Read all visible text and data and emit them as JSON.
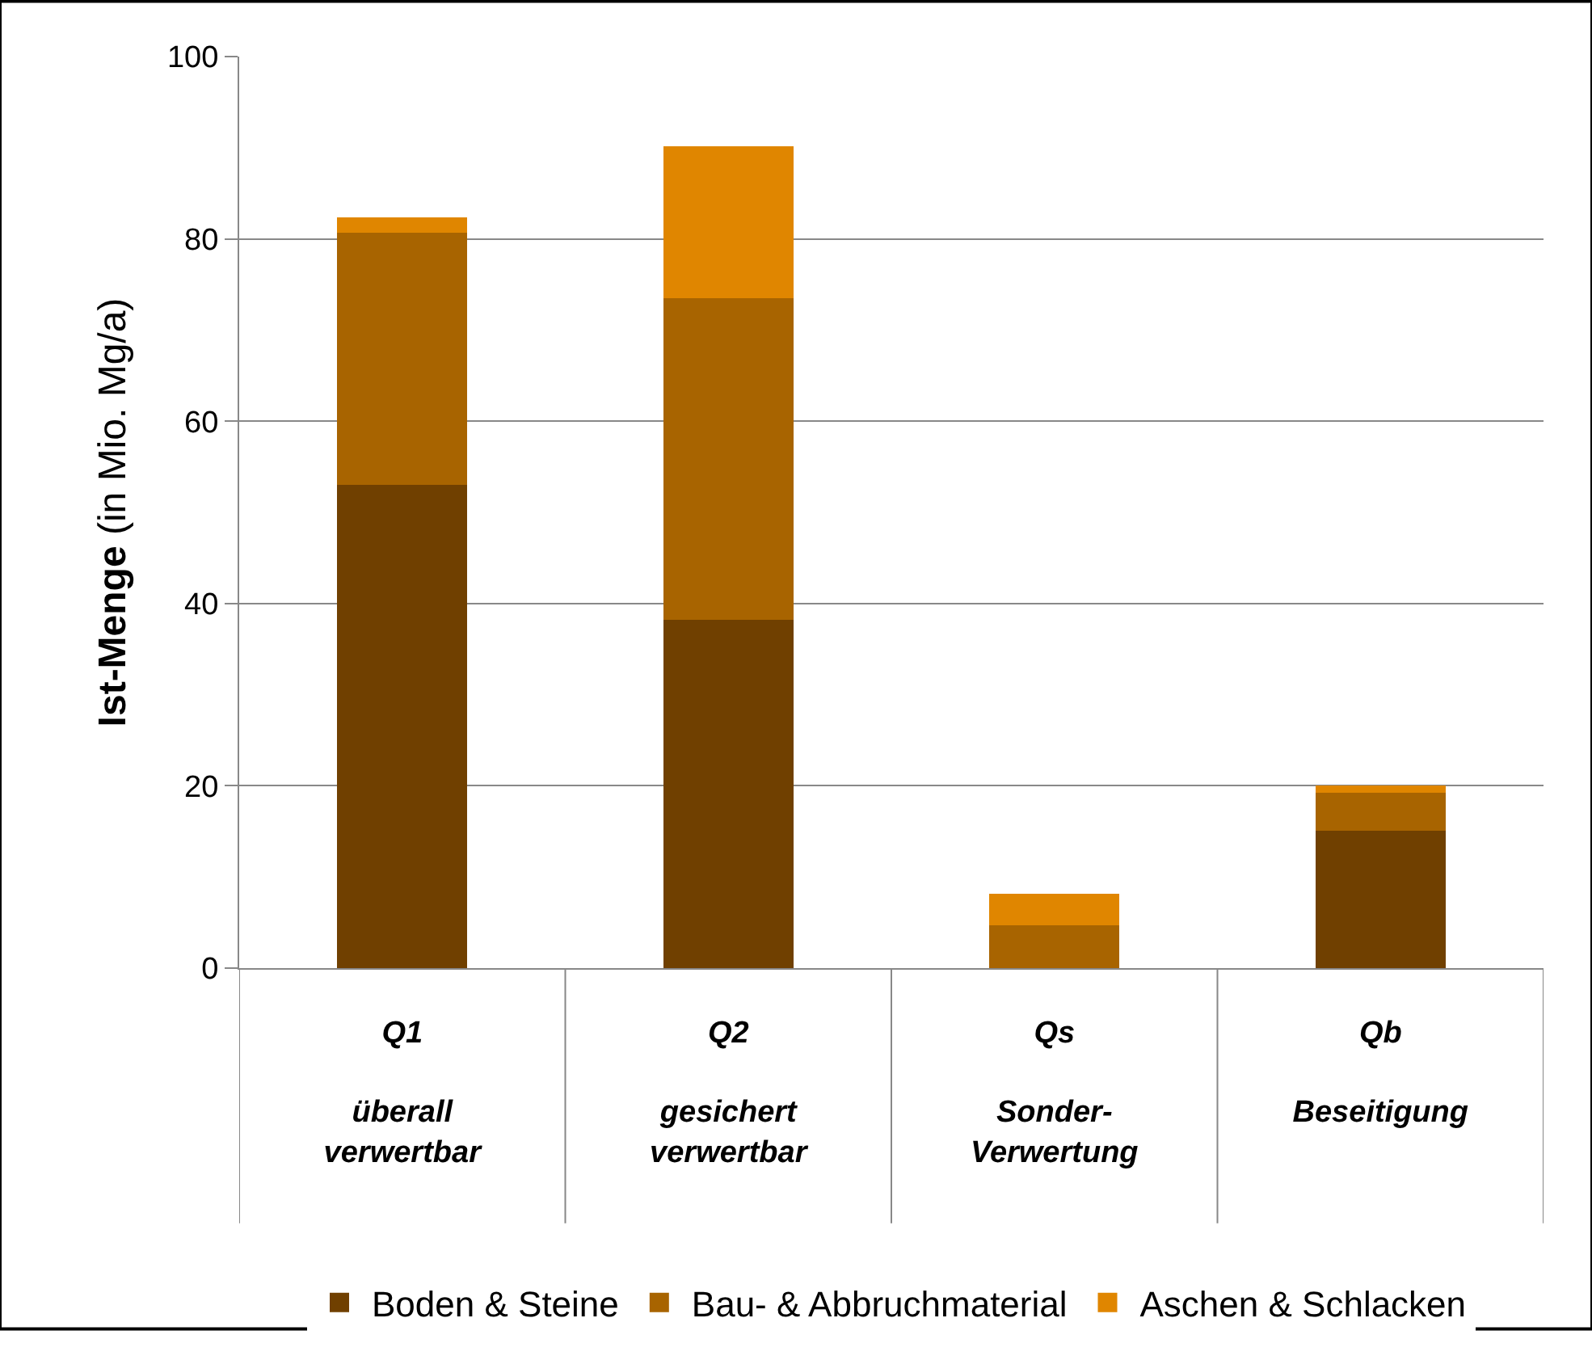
{
  "chart_data": {
    "type": "bar",
    "stacked": true,
    "ylabel": "Ist-Menge (in Mio. Mg/a)",
    "categories": [
      "Q1\n\nüberall\nverwertbar",
      "Q2\n\ngesichert\nverwertbar",
      "Qs\n\nSonder-\nVerwertung",
      "Qb\n\nBeseitigung\n"
    ],
    "series": [
      {
        "name": "Boden & Steine",
        "color": "#704000",
        "values": [
          53.0,
          38.2,
          0,
          15.1
        ]
      },
      {
        "name": "Bau- & Abbruchmaterial",
        "color": "#a86400",
        "values": [
          27.7,
          35.3,
          4.7,
          4.1
        ]
      },
      {
        "name": "Aschen & Schlacken",
        "color": "#e08600",
        "values": [
          1.7,
          16.7,
          3.5,
          0.8
        ]
      }
    ],
    "ylim": [
      0,
      100
    ],
    "yticks": [
      0,
      20,
      40,
      60,
      80,
      100
    ],
    "grid": "y",
    "legend": "bottom"
  }
}
